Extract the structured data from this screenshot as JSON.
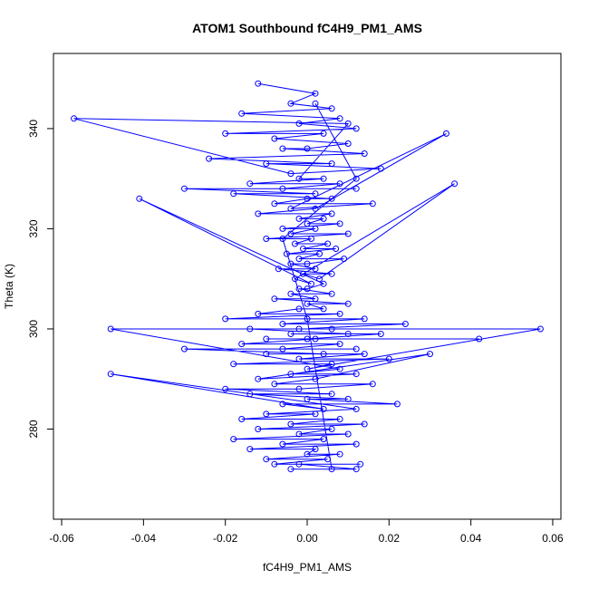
{
  "chart_data": {
    "type": "scatter",
    "title": "ATOM1 Southbound fC4H9_PM1_AMS",
    "xlabel": "fC4H9_PM1_AMS",
    "ylabel": "Theta (K)",
    "xlim": [
      -0.062,
      0.062
    ],
    "ylim": [
      262,
      355
    ],
    "x_ticks": [
      -0.06,
      -0.04,
      -0.02,
      0.0,
      0.02,
      0.04,
      0.06
    ],
    "x_tick_labels": [
      "-0.06",
      "-0.04",
      "-0.02",
      "0.00",
      "0.02",
      "0.04",
      "0.06"
    ],
    "y_ticks": [
      280,
      300,
      320,
      340
    ],
    "y_tick_labels": [
      "280",
      "300",
      "320",
      "340"
    ],
    "grid": false,
    "legend": "none",
    "series_style": "points-and-lines",
    "series_color": "#0000ff",
    "series": [
      {
        "x": [
          -0.012,
          0.002,
          -0.004,
          0.006,
          -0.016,
          0.008,
          -0.002,
          0.012,
          -0.02,
          0.004,
          -0.008,
          0.01,
          0.0,
          -0.006,
          0.014,
          -0.024,
          0.006,
          -0.01,
          0.018,
          -0.004,
          -0.057,
          0.01,
          -0.002,
          0.004,
          -0.014,
          0.008,
          -0.006,
          0.012,
          -0.03,
          0.002,
          -0.018,
          0.006,
          0.0,
          -0.008,
          0.016,
          -0.004,
          0.034,
          0.002,
          -0.012,
          0.006,
          -0.002,
          0.004,
          0.0,
          0.008,
          -0.006,
          0.002,
          -0.004,
          0.01,
          -0.01,
          0.001,
          -0.003,
          0.005,
          -0.001,
          0.007,
          -0.005,
          0.003,
          -0.002,
          0.009,
          0.0,
          -0.004,
          0.002,
          -0.007,
          0.006,
          -0.001,
          0.003,
          0.036,
          -0.003,
          0.001,
          -0.041,
          0.004,
          0.0,
          -0.002,
          0.006,
          -0.004,
          0.002,
          -0.008,
          0.01,
          0.0,
          0.004,
          -0.002,
          -0.012,
          0.008,
          -0.02,
          0.014,
          -0.006,
          0.024,
          -0.002,
          0.006,
          -0.014,
          0.01,
          -0.004,
          0.018,
          0.0,
          -0.01,
          0.042,
          0.002,
          -0.016,
          0.008,
          -0.006,
          0.012,
          -0.03,
          0.004,
          -0.01,
          0.014,
          -0.002,
          0.02,
          -0.018,
          0.006,
          0.0,
          0.057,
          -0.048,
          0.008,
          -0.004,
          0.012,
          -0.012,
          0.03,
          0.002,
          -0.008,
          0.016,
          -0.002,
          -0.02,
          0.006,
          -0.014,
          0.01,
          0.0,
          0.022,
          -0.006,
          0.004,
          -0.048,
          0.012,
          -0.01,
          0.002,
          -0.016,
          0.008,
          -0.004,
          0.014,
          -0.012,
          0.006,
          -0.002,
          0.01,
          -0.018,
          0.004,
          -0.006,
          0.012,
          -0.014,
          0.002,
          0.0,
          0.008,
          -0.01,
          0.005,
          -0.008,
          0.013,
          -0.002,
          0.012,
          -0.004,
          0.006,
          0.0,
          -0.006,
          0.012,
          0.002
        ],
        "y": [
          349,
          347,
          345,
          344,
          343,
          342,
          341,
          340,
          339,
          339,
          338,
          337,
          336,
          336,
          335,
          334,
          333,
          333,
          332,
          331,
          342,
          341,
          330,
          330,
          329,
          329,
          328,
          328,
          328,
          327,
          327,
          326,
          326,
          325,
          325,
          324,
          339,
          324,
          323,
          323,
          322,
          322,
          321,
          321,
          320,
          320,
          319,
          319,
          318,
          318,
          317,
          317,
          316,
          316,
          315,
          315,
          314,
          314,
          313,
          313,
          312,
          312,
          311,
          311,
          310,
          329,
          310,
          309,
          326,
          309,
          308,
          308,
          307,
          307,
          306,
          306,
          305,
          305,
          304,
          304,
          303,
          303,
          302,
          302,
          301,
          301,
          300,
          300,
          300,
          299,
          299,
          299,
          298,
          298,
          298,
          298,
          297,
          297,
          296,
          296,
          296,
          295,
          295,
          295,
          294,
          294,
          293,
          293,
          292,
          300,
          300,
          292,
          291,
          291,
          290,
          295,
          290,
          289,
          289,
          288,
          288,
          287,
          287,
          286,
          286,
          285,
          285,
          284,
          291,
          284,
          283,
          283,
          282,
          282,
          281,
          281,
          280,
          280,
          279,
          279,
          278,
          278,
          277,
          277,
          276,
          276,
          275,
          275,
          274,
          274,
          273,
          273,
          273,
          272,
          272,
          272,
          302,
          318,
          330,
          345
        ]
      }
    ]
  }
}
